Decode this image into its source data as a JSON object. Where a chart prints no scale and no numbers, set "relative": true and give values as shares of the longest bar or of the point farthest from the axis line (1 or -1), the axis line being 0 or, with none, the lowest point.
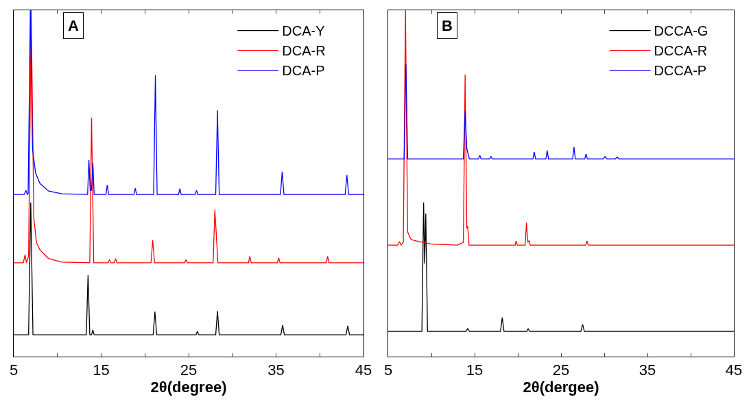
{
  "chart_data": [
    {
      "type": "line",
      "xlabel": "2θ(degree)",
      "annotations": [
        "A"
      ],
      "xlim": [
        5,
        45
      ],
      "xticks": [
        5,
        {
          "value": 10,
          "label": null
        },
        15,
        {
          "value": 20,
          "label": null
        },
        25,
        {
          "value": 30,
          "label": null
        },
        35,
        {
          "value": 40,
          "label": null
        },
        45
      ],
      "relative": true,
      "legend": "top right",
      "tick_labels": "x",
      "series": [
        {
          "name": "DCA-Y",
          "color": "#000000",
          "x": [
            5,
            6.7,
            6.95,
            7.2,
            13.3,
            13.5,
            13.7,
            13.9,
            14.05,
            14.2,
            20.95,
            21.15,
            21.35,
            25.85,
            26.0,
            26.15,
            28.1,
            28.3,
            28.5,
            35.55,
            35.75,
            35.95,
            43.0,
            43.2,
            43.4,
            45
          ],
          "values": [
            0.063,
            0.063,
            0.445,
            0.063,
            0.063,
            0.235,
            0.063,
            0.063,
            0.077,
            0.063,
            0.063,
            0.13,
            0.063,
            0.063,
            0.073,
            0.063,
            0.063,
            0.132,
            0.063,
            0.063,
            0.091,
            0.063,
            0.063,
            0.089,
            0.063,
            0.063
          ]
        },
        {
          "name": "DCA-R",
          "color": "#ff0000",
          "x": [
            5,
            6.1,
            6.3,
            6.45,
            6.7,
            7.0,
            7.3,
            7.6,
            8.0,
            9.0,
            10.5,
            13.7,
            13.9,
            14.15,
            15.8,
            15.95,
            16.1,
            16.5,
            16.65,
            16.8,
            20.7,
            20.9,
            21.1,
            24.55,
            24.7,
            24.85,
            27.8,
            28.0,
            28.15,
            28.35,
            31.85,
            32.0,
            32.15,
            35.15,
            35.3,
            35.45,
            40.75,
            40.9,
            41.05,
            45
          ],
          "values": [
            0.271,
            0.271,
            0.294,
            0.271,
            0.29,
            1.0,
            0.4,
            0.33,
            0.308,
            0.283,
            0.273,
            0.271,
            0.69,
            0.271,
            0.271,
            0.28,
            0.271,
            0.271,
            0.283,
            0.271,
            0.271,
            0.336,
            0.271,
            0.271,
            0.28,
            0.271,
            0.271,
            0.423,
            0.36,
            0.271,
            0.271,
            0.29,
            0.271,
            0.271,
            0.285,
            0.271,
            0.271,
            0.29,
            0.271,
            0.271
          ]
        },
        {
          "name": "DCA-P",
          "color": "#0000ff",
          "x": [
            5,
            6.2,
            6.4,
            6.55,
            6.65,
            6.9,
            7.15,
            7.5,
            8.0,
            9.0,
            10.5,
            13.45,
            13.6,
            13.75,
            13.9,
            14.05,
            14.2,
            15.55,
            15.7,
            15.85,
            18.75,
            18.9,
            19.05,
            21.0,
            21.2,
            21.4,
            23.85,
            24.0,
            24.15,
            25.75,
            25.9,
            26.05,
            28.1,
            28.3,
            28.5,
            35.5,
            35.7,
            35.9,
            42.9,
            43.1,
            43.3,
            45
          ],
          "values": [
            0.468,
            0.468,
            0.48,
            0.468,
            0.47,
            1.0,
            0.6,
            0.53,
            0.5,
            0.478,
            0.47,
            0.468,
            0.567,
            0.48,
            0.48,
            0.559,
            0.468,
            0.468,
            0.496,
            0.468,
            0.468,
            0.486,
            0.468,
            0.468,
            0.812,
            0.468,
            0.468,
            0.485,
            0.468,
            0.468,
            0.48,
            0.468,
            0.468,
            0.711,
            0.468,
            0.468,
            0.534,
            0.468,
            0.468,
            0.524,
            0.468,
            0.468
          ]
        }
      ]
    },
    {
      "type": "line",
      "xlabel": "2θ(dergee)",
      "annotations": [
        "B"
      ],
      "xlim": [
        5,
        45
      ],
      "xticks": [
        5,
        {
          "value": 10,
          "label": null
        },
        15,
        {
          "value": 20,
          "label": null
        },
        25,
        {
          "value": 30,
          "label": null
        },
        35,
        {
          "value": 40,
          "label": null
        },
        45
      ],
      "relative": true,
      "legend": "top right",
      "tick_labels": "x",
      "series": [
        {
          "name": "DCCA-G",
          "color": "#000000",
          "x": [
            5,
            8.9,
            9.1,
            9.22,
            9.35,
            9.55,
            14.0,
            14.2,
            14.4,
            18.0,
            18.2,
            18.4,
            21.05,
            21.2,
            21.35,
            27.3,
            27.5,
            27.7,
            45
          ],
          "values": [
            0.073,
            0.073,
            0.445,
            0.269,
            0.413,
            0.073,
            0.073,
            0.081,
            0.073,
            0.073,
            0.113,
            0.073,
            0.073,
            0.081,
            0.073,
            0.073,
            0.093,
            0.073,
            0.073
          ]
        },
        {
          "name": "DCCA-R",
          "color": "#ff0000",
          "x": [
            5,
            6.1,
            6.3,
            6.5,
            6.75,
            7.0,
            7.25,
            7.6,
            8.0,
            10.0,
            13.0,
            13.7,
            13.9,
            14.1,
            14.2,
            14.35,
            19.7,
            19.8,
            19.95,
            20.85,
            21.0,
            21.15,
            21.3,
            21.45,
            27.85,
            28.0,
            28.15,
            45
          ],
          "values": [
            0.322,
            0.322,
            0.332,
            0.322,
            0.33,
            1.0,
            0.36,
            0.34,
            0.335,
            0.325,
            0.322,
            0.33,
            0.814,
            0.37,
            0.377,
            0.322,
            0.322,
            0.334,
            0.322,
            0.322,
            0.387,
            0.33,
            0.335,
            0.322,
            0.322,
            0.334,
            0.322,
            0.322
          ]
        },
        {
          "name": "DCCA-P",
          "color": "#0000ff",
          "x": [
            5,
            6.85,
            7.05,
            7.25,
            13.7,
            13.9,
            14.1,
            14.25,
            14.4,
            15.45,
            15.6,
            15.75,
            16.75,
            16.9,
            17.05,
            21.75,
            21.9,
            22.05,
            23.25,
            23.4,
            23.55,
            26.35,
            26.5,
            26.65,
            27.75,
            27.9,
            28.05,
            29.9,
            30.1,
            30.3,
            31.3,
            31.5,
            31.7,
            45
          ],
          "values": [
            0.571,
            0.571,
            0.844,
            0.571,
            0.571,
            0.709,
            0.6,
            0.585,
            0.571,
            0.571,
            0.581,
            0.571,
            0.571,
            0.578,
            0.571,
            0.571,
            0.591,
            0.571,
            0.571,
            0.595,
            0.571,
            0.571,
            0.605,
            0.571,
            0.571,
            0.585,
            0.571,
            0.571,
            0.578,
            0.571,
            0.571,
            0.576,
            0.571,
            0.571
          ]
        }
      ]
    }
  ]
}
